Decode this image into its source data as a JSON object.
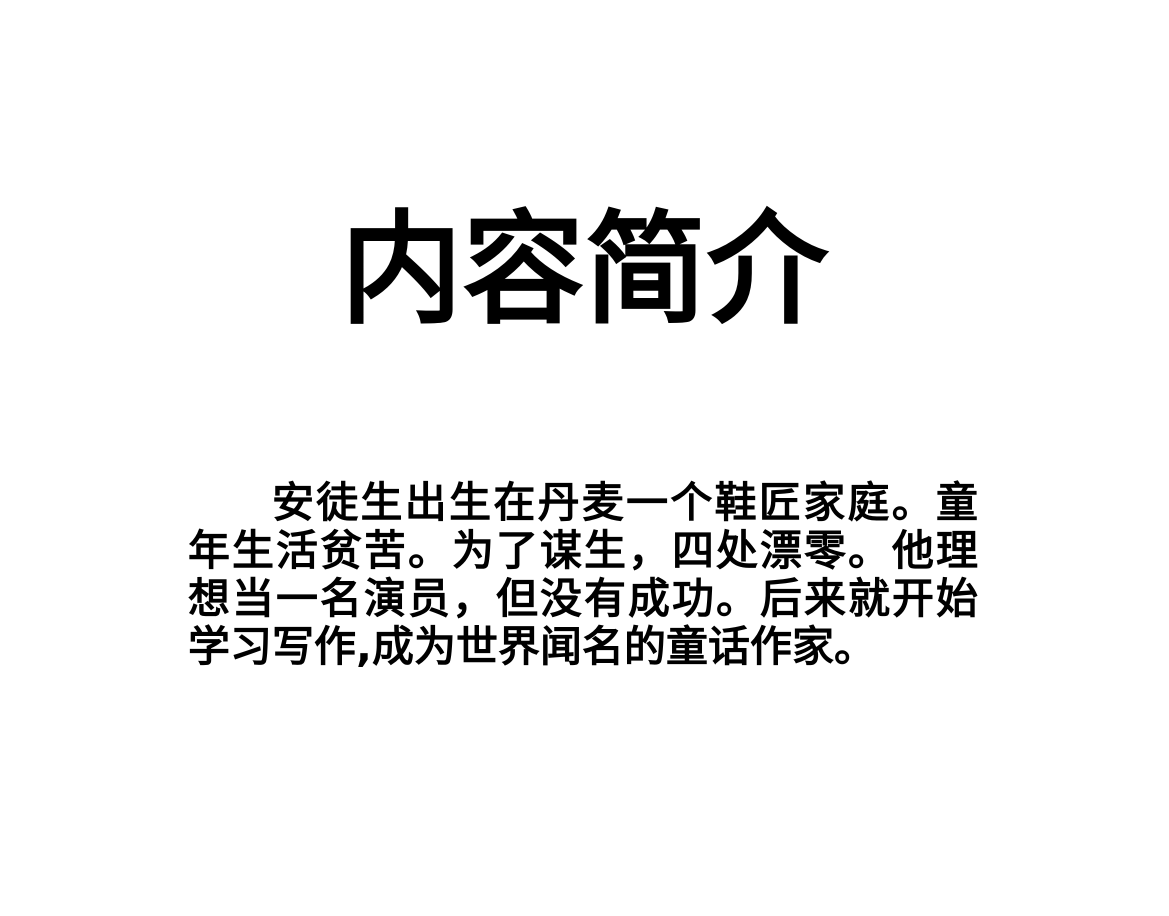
{
  "document": {
    "title": "内容简介",
    "summary": "安徒生出生在丹麦一个鞋匠家庭。童年生活贫苦。为了谋生，四处漂零。他理想当一名演员，但没有成功。后来就开始学习写作,成为世界闻名的童话作家。"
  }
}
